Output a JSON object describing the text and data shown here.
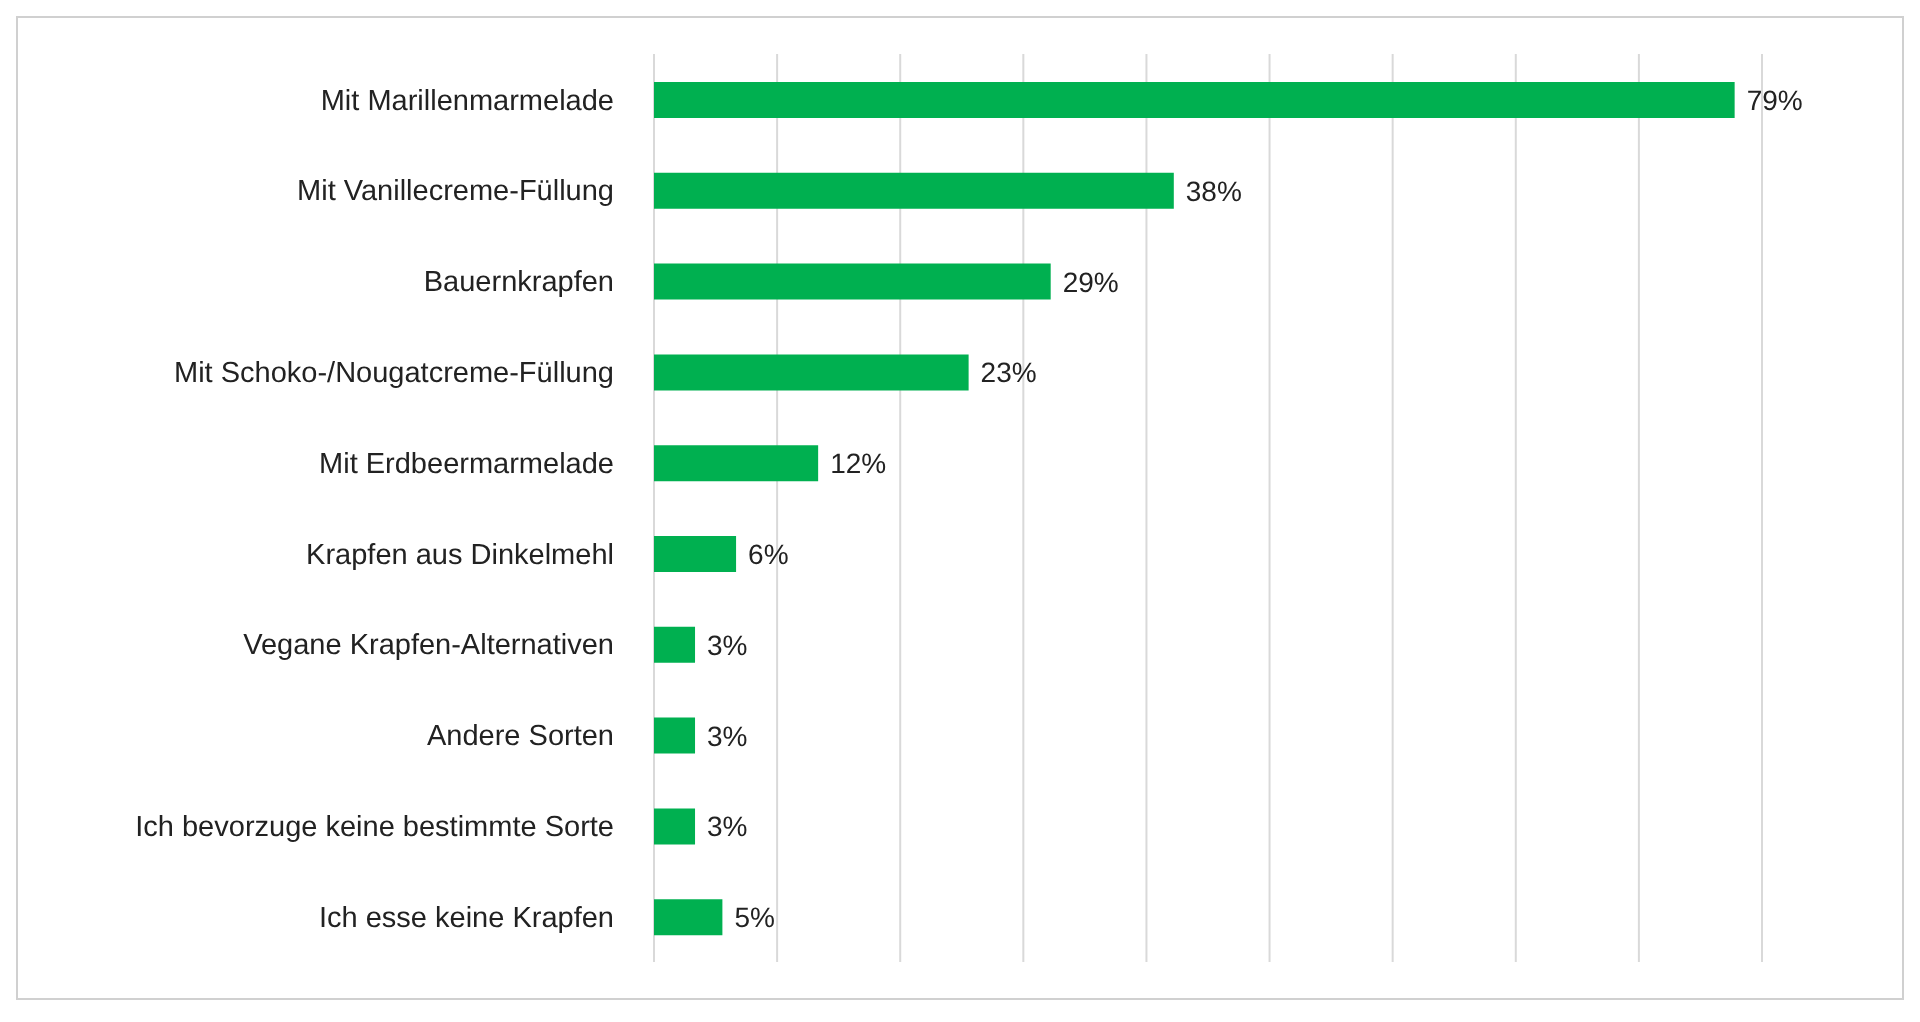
{
  "chart_data": {
    "type": "bar",
    "orientation": "horizontal",
    "categories": [
      "Mit Marillenmarmelade",
      "Mit Vanillecreme-Füllung",
      "Bauernkrapfen",
      "Mit Schoko-/Nougatcreme-Füllung",
      "Mit Erdbeermarmelade",
      "Krapfen aus Dinkelmehl",
      "Vegane Krapfen-Alternativen",
      "Andere Sorten",
      "Ich bevorzuge keine bestimmte Sorte",
      "Ich esse keine Krapfen"
    ],
    "values": [
      79,
      38,
      29,
      23,
      12,
      6,
      3,
      3,
      3,
      5
    ],
    "value_labels": [
      "79%",
      "38%",
      "29%",
      "23%",
      "12%",
      "6%",
      "3%",
      "3%",
      "3%",
      "5%"
    ],
    "color": "#00b050",
    "grid": "x",
    "tick_labels": "y"
  }
}
